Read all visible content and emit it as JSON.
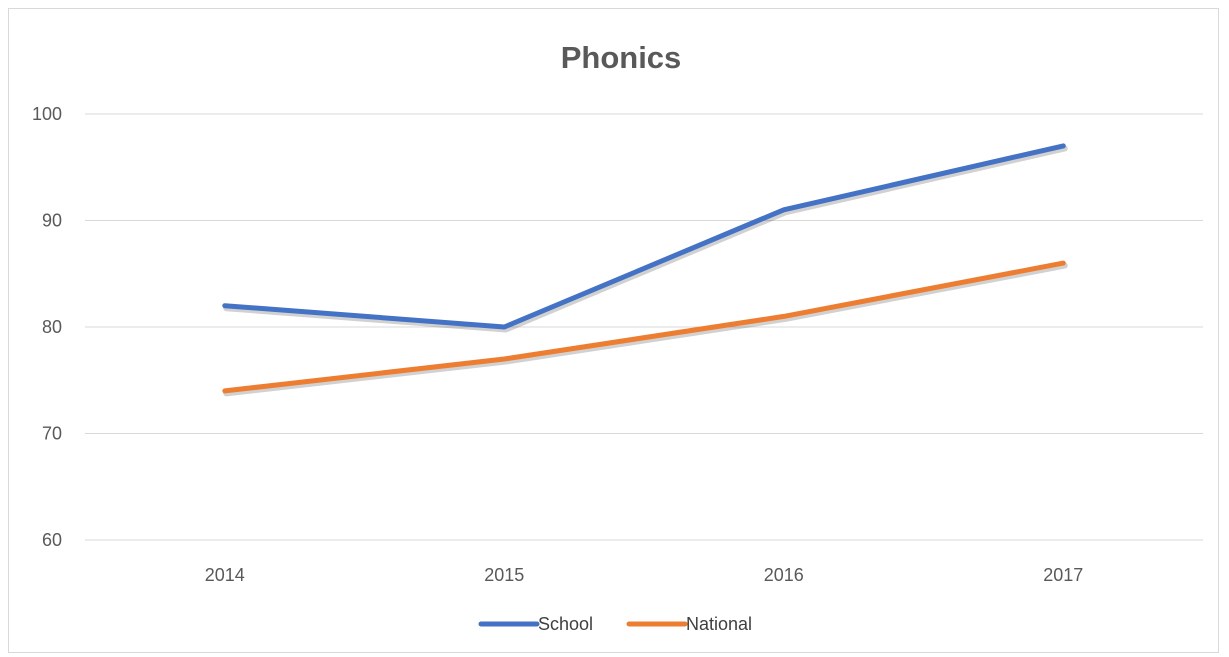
{
  "chart_data": {
    "type": "line",
    "title": "Phonics",
    "xlabel": "",
    "ylabel": "",
    "categories": [
      "2014",
      "2015",
      "2016",
      "2017"
    ],
    "series": [
      {
        "name": "School",
        "values": [
          82,
          80,
          91,
          97
        ],
        "color": "#4472C4"
      },
      {
        "name": "National",
        "values": [
          74,
          77,
          81,
          86
        ],
        "color": "#ED7D31"
      }
    ],
    "ylim": [
      60,
      100
    ],
    "yticks": [
      60,
      70,
      80,
      90,
      100
    ],
    "grid": true,
    "legend_position": "bottom"
  }
}
